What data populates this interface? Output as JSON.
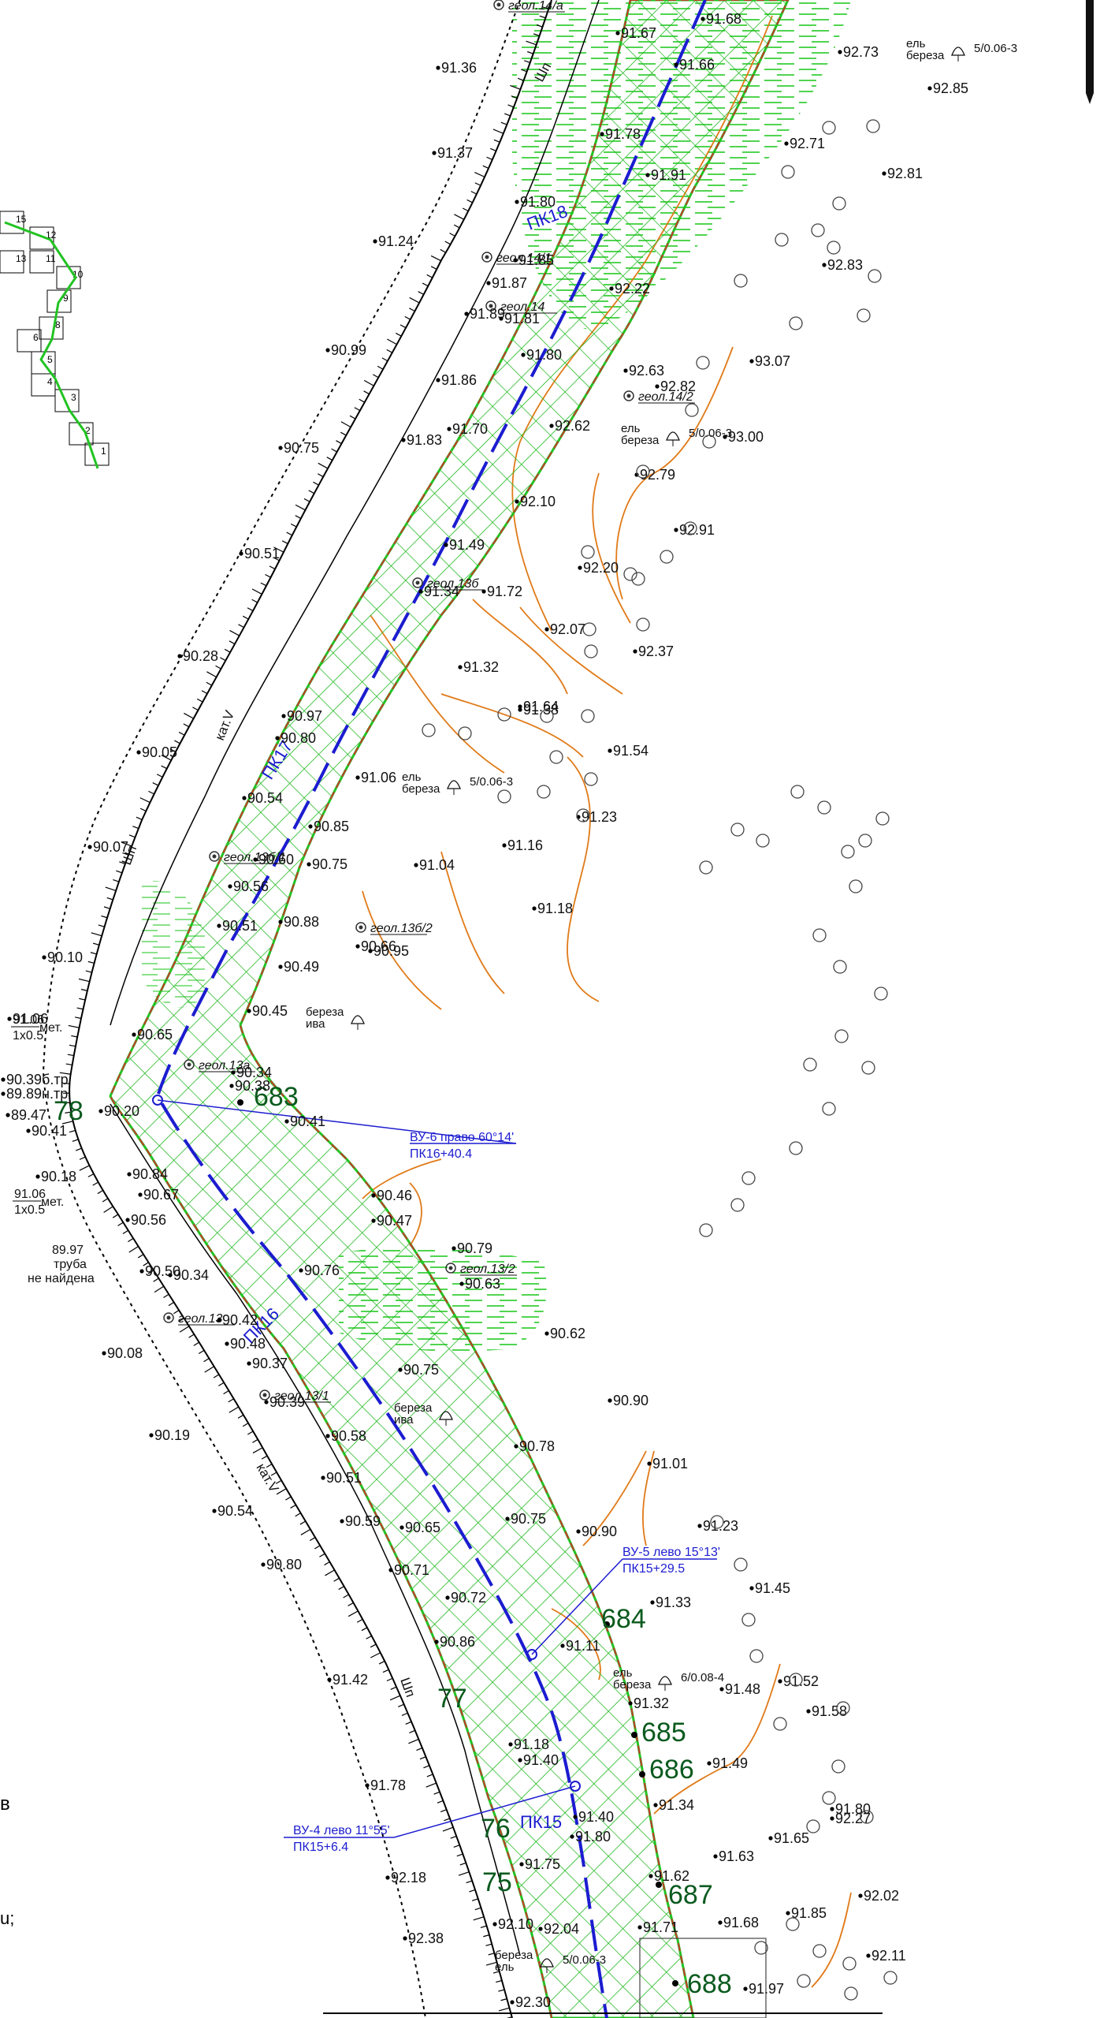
{
  "map": {
    "station_labels": [
      "ПК18",
      "ПК17",
      "ПК16",
      "ПК15"
    ],
    "turn_points": [
      {
        "line1": "ВУ-6 право 60°14'",
        "line2": "ПК16+40.4"
      },
      {
        "line1": "ВУ-5 лево 15°13'",
        "line2": "ПК15+29.5"
      },
      {
        "line1": "ВУ-4 лево 11°55'",
        "line2": "ПК15+6.4"
      }
    ],
    "boundary_points": [
      "683",
      "684",
      "685",
      "686",
      "687",
      "688"
    ],
    "km_marks": [
      "78",
      "77",
      "76",
      "75"
    ],
    "geo_points": [
      "геол.14/а",
      "геол.14/1",
      "геол.14",
      "геол.14/2",
      "геол.13б",
      "геол.13б/1",
      "геол.13б/2",
      "геол.13а",
      "геол.13",
      "геол.13/1",
      "геол.13/2"
    ],
    "notes": [
      {
        "line1": "89.97",
        "line2": "труба",
        "line3": "не найдена"
      },
      {
        "line1": "91.06",
        "line2": "1х0.5",
        "suffix": "мет."
      },
      {
        "line1": "91.06",
        "line2": "1х0.5",
        "suffix": "мет."
      }
    ],
    "road_category": [
      "кат.V",
      "кат.V"
    ],
    "surface": [
      "Шп",
      "Шп",
      "Шп"
    ],
    "elevations": [
      "91.36",
      "91.37",
      "91.24",
      "90.99",
      "90.75",
      "90.51",
      "90.28",
      "90.05",
      "90.07",
      "90.10",
      "91.06",
      "90.39б.тр",
      "89.89н.тр",
      "89.47",
      "90.41",
      "90.18",
      "90.08",
      "90.19",
      "90.54",
      "90.80",
      "91.42",
      "91.78",
      "92.18",
      "92.38",
      "91.67",
      "91.68",
      "91.66",
      "91.78",
      "91.91",
      "91.80",
      "91.87",
      "91.85",
      "91.89",
      "91.81",
      "91.80",
      "92.22",
      "91.86",
      "91.70",
      "91.83",
      "92.62",
      "92.63",
      "92.82",
      "92.79",
      "92.10",
      "92.91",
      "92.20",
      "92.07",
      "92.37",
      "91.49",
      "91.72",
      "91.34",
      "91.32",
      "91.38",
      "91.64",
      "91.54",
      "91.23",
      "91.16",
      "91.04",
      "91.18",
      "91.06",
      "90.97",
      "90.80",
      "90.54",
      "90.85",
      "90.60",
      "90.75",
      "90.56",
      "90.51",
      "90.66",
      "90.95",
      "90.88",
      "90.49",
      "90.45",
      "90.65",
      "90.34",
      "90.41",
      "90.38",
      "90.20",
      "90.84",
      "90.67",
      "90.56",
      "90.50",
      "90.34",
      "90.42",
      "90.48",
      "90.37",
      "90.39",
      "90.46",
      "90.47",
      "90.79",
      "90.63",
      "90.76",
      "90.62",
      "90.75",
      "90.90",
      "90.78",
      "91.01",
      "90.58",
      "90.51",
      "90.59",
      "90.65",
      "90.71",
      "90.75",
      "90.90",
      "90.72",
      "90.86",
      "91.11",
      "91.23",
      "91.33",
      "91.45",
      "91.52",
      "91.48",
      "91.58",
      "91.32",
      "91.18",
      "91.40",
      "91.49",
      "91.34",
      "91.40",
      "92.27",
      "91.80",
      "91.62",
      "91.63",
      "91.65",
      "91.80",
      "91.75",
      "92.10",
      "92.04",
      "91.71",
      "91.68",
      "91.85",
      "92.02",
      "92.11",
      "91.97",
      "92.30",
      "92.73",
      "92.85",
      "92.71",
      "92.81",
      "92.83",
      "93.07",
      "93.00"
    ],
    "tree_labels": [
      "ель береза",
      "ель береза",
      "ель береза",
      "береза ива",
      "береза ива",
      "ель береза",
      "береза ель"
    ],
    "tree_fractions": [
      "5/0.06-3",
      "5/0.06-3",
      "5/0.06-3",
      "6/0.08-4",
      "5/0.06-3"
    ],
    "colors": {
      "road_corridor": "#22c322",
      "hatch": "#1fb81f",
      "centerline": "#1c1cd0",
      "contour": "#e07a18",
      "forest": "#33cc33",
      "boundary": "#c23b2a"
    },
    "sheet_index": [
      "15",
      "12",
      "13",
      "11",
      "10",
      "9",
      "8",
      "6",
      "5",
      "4",
      "3",
      "2",
      "1"
    ]
  }
}
